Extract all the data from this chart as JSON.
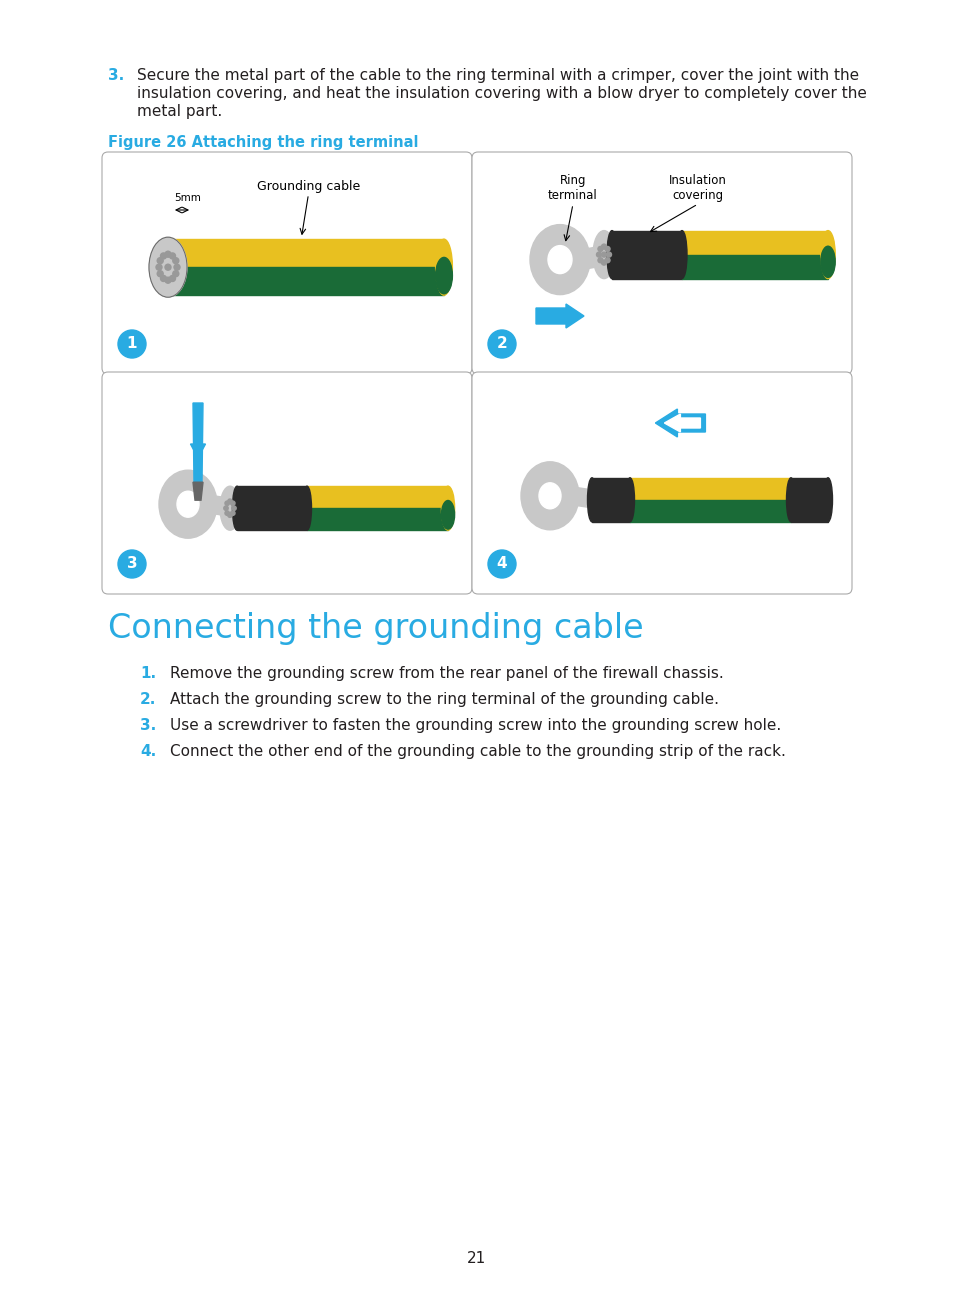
{
  "bg_color": "#ffffff",
  "cyan_color": "#29ABE2",
  "black_color": "#231F20",
  "figure_label": "Figure 26 Attaching the ring terminal",
  "section_title": "Connecting the grounding cable",
  "steps": [
    "Remove the grounding screw from the rear panel of the firewall chassis.",
    "Attach the grounding screw to the ring terminal of the grounding cable.",
    "Use a screwdriver to fasten the grounding screw into the grounding screw hole.",
    "Connect the other end of the grounding cable to the grounding strip of the rack."
  ],
  "page_number": "21",
  "yellow_color": "#E8C020",
  "dark_green": "#1A6B37",
  "gray_light": "#C8C8C8",
  "gray_mid": "#999999",
  "gray_dark": "#666666",
  "black_ins": "#2A2A2A",
  "para3_num": "3.",
  "para3_text1": "Secure the metal part of the cable to the ring terminal with a crimper, cover the joint with the",
  "para3_text2": "insulation covering, and heat the insulation covering with a blow dryer to completely cover the",
  "para3_text3": "metal part."
}
